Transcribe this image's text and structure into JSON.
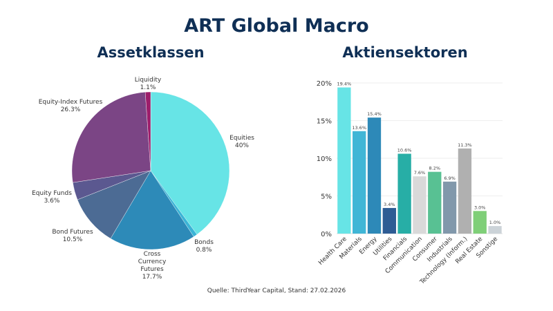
{
  "title": "ART Global Macro",
  "source": "Quelle: ThirdYear Capital, Stand: 27.02.2026",
  "chart_data": [
    {
      "type": "pie",
      "title": "Assetklassen",
      "slices": [
        {
          "label": "Equities",
          "value": 40,
          "value_label": "40%",
          "color": "#67e4e6"
        },
        {
          "label": "Bonds",
          "value": 0.8,
          "value_label": "0.8%",
          "color": "#3bb4d6"
        },
        {
          "label": "Cross Currency Futures",
          "value": 17.7,
          "value_label": "17.7%",
          "color": "#2d8ab8"
        },
        {
          "label": "Bond Futures",
          "value": 10.5,
          "value_label": "10.5%",
          "color": "#4c6b94"
        },
        {
          "label": "Equity Funds",
          "value": 3.6,
          "value_label": "3.6%",
          "color": "#5b5890"
        },
        {
          "label": "Equity-Index Futures",
          "value": 26.3,
          "value_label": "26.3%",
          "color": "#7b4585"
        },
        {
          "label": "Liquidity",
          "value": 1.1,
          "value_label": "1.1%",
          "color": "#9c1e6b"
        }
      ]
    },
    {
      "type": "bar",
      "title": "Aktiensektoren",
      "ylim": [
        0,
        20
      ],
      "yticks": [
        "0%",
        "5%",
        "10%",
        "15%",
        "20%"
      ],
      "grid": true,
      "categories": [
        "Health Care",
        "Materials",
        "Energy",
        "Utilities",
        "Financials",
        "Communication",
        "Consumer",
        "Industrials",
        "Technology (Inform.)",
        "Real Estate",
        "Sonstige"
      ],
      "values": [
        19.4,
        13.6,
        15.4,
        3.4,
        10.6,
        7.6,
        8.2,
        6.9,
        11.3,
        3.0,
        1.0
      ],
      "value_labels": [
        "19.4%",
        "13.6%",
        "15.4%",
        "3.4%",
        "10.6%",
        "7.6%",
        "8.2%",
        "6.9%",
        "11.3%",
        "3.0%",
        "1.0%"
      ],
      "colors": [
        "#67e4e6",
        "#40b6d6",
        "#2d89b8",
        "#2e5c94",
        "#27aea6",
        "#d9d9d9",
        "#58c193",
        "#8198ab",
        "#b0b0b0",
        "#7fcf78",
        "#ccd3d8"
      ]
    }
  ]
}
